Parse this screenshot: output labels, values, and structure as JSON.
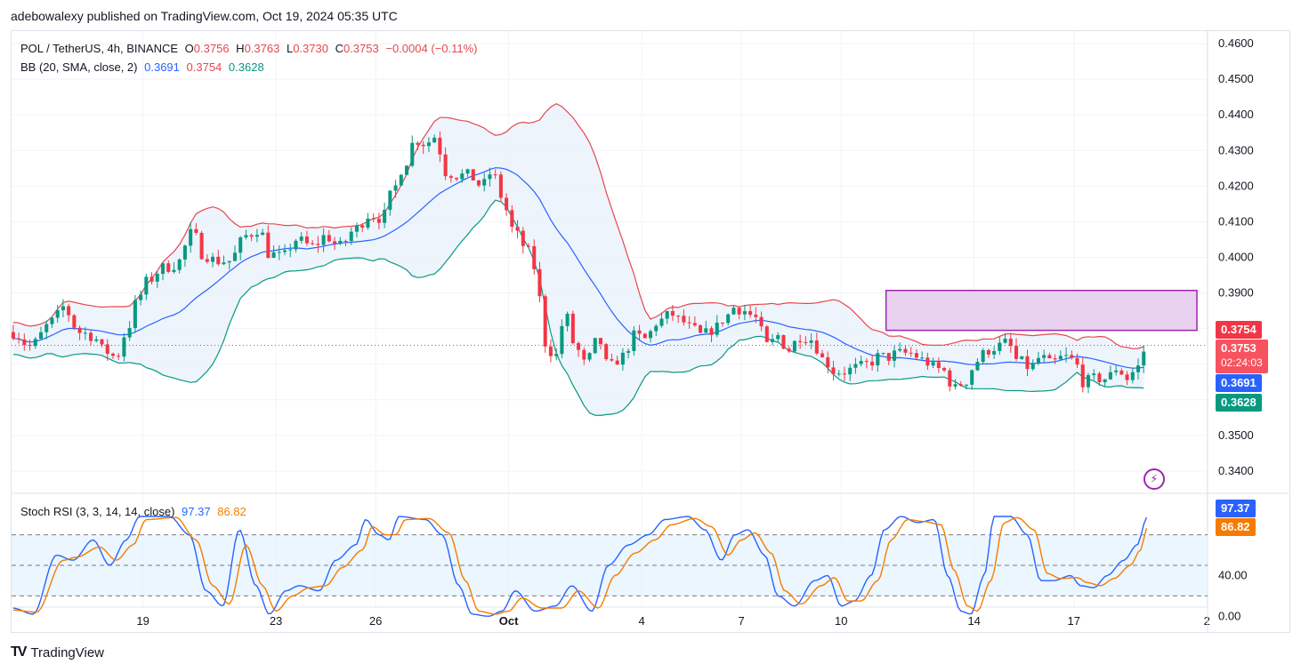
{
  "publisher_line": "adebowalexy published on TradingView.com, Oct 19, 2024 05:35 UTC",
  "legend": {
    "symbol": "POL / TetherUS, 4h, BINANCE",
    "o_label": "O",
    "o_value": "0.3756",
    "h_label": "H",
    "h_value": "0.3763",
    "l_label": "L",
    "l_value": "0.3730",
    "c_label": "C",
    "c_value": "0.3753",
    "change": "−0.0004 (−0.11%)",
    "bb_label": "BB (20, SMA, close, 2)",
    "bb_basis": "0.3691",
    "bb_upper": "0.3754",
    "bb_lower": "0.3628",
    "stoch_label": "Stoch RSI (3, 3, 14, 14, close)",
    "stoch_k": "97.37",
    "stoch_d": "86.82"
  },
  "price_tags": {
    "upper": "0.3754",
    "close": "0.3753",
    "countdown": "02:24:03",
    "basis": "0.3691",
    "lower": "0.3628",
    "stoch_k": "97.37",
    "stoch_d": "86.82"
  },
  "colors": {
    "up": "#089981",
    "down": "#f23645",
    "upper_band": "#e5484d",
    "basis": "#2962ff",
    "lower_band": "#089981",
    "band_fill": "#e8f1fb",
    "zone": "#e8d2ef",
    "zone_border": "#9c27b0",
    "stoch_k": "#2962ff",
    "stoch_d": "#f57c00",
    "stoch_fill": "#e3f2fd"
  },
  "footer": {
    "brand": "TradingView",
    "logo_text": "TV"
  },
  "icons": {
    "flash": "lightning-bolt-icon"
  },
  "chart_data": [
    {
      "type": "candlestick",
      "title": "POL / TetherUS, 4h, BINANCE",
      "ylim": [
        0.335,
        0.462
      ],
      "y_ticks": [
        "0.4600",
        "0.4500",
        "0.4400",
        "0.4300",
        "0.4200",
        "0.4100",
        "0.4000",
        "0.3900",
        "0.3800",
        "0.3700",
        "0.3600",
        "0.3500",
        "0.3400"
      ],
      "x_ticks": [
        {
          "label": "19",
          "day": 19
        },
        {
          "label": "23",
          "day": 23
        },
        {
          "label": "26",
          "day": 26
        },
        {
          "label": "Oct",
          "day": 30
        },
        {
          "label": "4",
          "day": 34
        },
        {
          "label": "7",
          "day": 37
        },
        {
          "label": "10",
          "day": 40
        },
        {
          "label": "14",
          "day": 44
        },
        {
          "label": "17",
          "day": 47
        },
        {
          "label": "2",
          "day": 51
        }
      ],
      "days_range": [
        15.05,
        51.02
      ],
      "close_key": [
        [
          15.1,
          0.379
        ],
        [
          15.6,
          0.375
        ],
        [
          16.3,
          0.382
        ],
        [
          16.6,
          0.386
        ],
        [
          17.1,
          0.379
        ],
        [
          17.5,
          0.378
        ],
        [
          17.8,
          0.374
        ],
        [
          18.2,
          0.372
        ],
        [
          18.5,
          0.379
        ],
        [
          18.8,
          0.387
        ],
        [
          19.1,
          0.393
        ],
        [
          19.6,
          0.397
        ],
        [
          20.0,
          0.398
        ],
        [
          20.5,
          0.407
        ],
        [
          20.8,
          0.401
        ],
        [
          21.2,
          0.399
        ],
        [
          21.6,
          0.399
        ],
        [
          22.1,
          0.406
        ],
        [
          22.5,
          0.408
        ],
        [
          22.8,
          0.401
        ],
        [
          23.2,
          0.4
        ],
        [
          23.6,
          0.405
        ],
        [
          24.1,
          0.403
        ],
        [
          24.5,
          0.406
        ],
        [
          24.9,
          0.403
        ],
        [
          25.4,
          0.408
        ],
        [
          25.8,
          0.412
        ],
        [
          26.2,
          0.411
        ],
        [
          26.5,
          0.418
        ],
        [
          26.8,
          0.425
        ],
        [
          27.2,
          0.433
        ],
        [
          27.5,
          0.432
        ],
        [
          27.8,
          0.434
        ],
        [
          28.1,
          0.424
        ],
        [
          28.5,
          0.423
        ],
        [
          28.8,
          0.423
        ],
        [
          29.2,
          0.42
        ],
        [
          29.5,
          0.424
        ],
        [
          29.8,
          0.417
        ],
        [
          30.1,
          0.408
        ],
        [
          30.5,
          0.403
        ],
        [
          30.8,
          0.397
        ],
        [
          31.1,
          0.376
        ],
        [
          31.4,
          0.372
        ],
        [
          31.7,
          0.384
        ],
        [
          32.0,
          0.375
        ],
        [
          32.3,
          0.37
        ],
        [
          32.7,
          0.377
        ],
        [
          33.0,
          0.369
        ],
        [
          33.4,
          0.372
        ],
        [
          33.8,
          0.378
        ],
        [
          34.1,
          0.377
        ],
        [
          34.5,
          0.382
        ],
        [
          34.9,
          0.384
        ],
        [
          35.2,
          0.382
        ],
        [
          35.5,
          0.38
        ],
        [
          35.8,
          0.378
        ],
        [
          36.2,
          0.38
        ],
        [
          36.5,
          0.383
        ],
        [
          36.8,
          0.386
        ],
        [
          37.1,
          0.385
        ],
        [
          37.4,
          0.383
        ],
        [
          37.8,
          0.375
        ],
        [
          38.1,
          0.378
        ],
        [
          38.4,
          0.374
        ],
        [
          38.8,
          0.378
        ],
        [
          39.1,
          0.377
        ],
        [
          39.5,
          0.371
        ],
        [
          39.8,
          0.368
        ],
        [
          40.1,
          0.368
        ],
        [
          40.5,
          0.369
        ],
        [
          40.8,
          0.37
        ],
        [
          41.1,
          0.372
        ],
        [
          41.4,
          0.372
        ],
        [
          41.7,
          0.373
        ],
        [
          42.1,
          0.373
        ],
        [
          42.5,
          0.371
        ],
        [
          42.8,
          0.369
        ],
        [
          43.1,
          0.368
        ],
        [
          43.4,
          0.363
        ],
        [
          43.7,
          0.365
        ],
        [
          44.1,
          0.371
        ],
        [
          44.4,
          0.374
        ],
        [
          44.7,
          0.375
        ],
        [
          45.0,
          0.376
        ],
        [
          45.3,
          0.371
        ],
        [
          45.7,
          0.369
        ],
        [
          46.0,
          0.372
        ],
        [
          46.3,
          0.37
        ],
        [
          46.7,
          0.372
        ],
        [
          47.0,
          0.371
        ],
        [
          47.3,
          0.365
        ],
        [
          47.7,
          0.366
        ],
        [
          48.0,
          0.366
        ],
        [
          48.3,
          0.369
        ],
        [
          48.6,
          0.366
        ],
        [
          48.9,
          0.369
        ],
        [
          49.2,
          0.3753
        ]
      ],
      "resistance_zone": {
        "day_from": 41.35,
        "day_to": 50.7,
        "price_low": 0.3795,
        "price_high": 0.3907
      }
    },
    {
      "type": "line",
      "title": "Stoch RSI (3, 3, 14, 14, close)",
      "ylim": [
        -5,
        112
      ],
      "y_ticks": [
        "40.00",
        "0.00"
      ],
      "bands": [
        80,
        50,
        20
      ],
      "series": [
        {
          "name": "K",
          "key": [
            [
              15.1,
              8
            ],
            [
              15.7,
              2
            ],
            [
              16.4,
              60
            ],
            [
              16.9,
              55
            ],
            [
              17.5,
              75
            ],
            [
              18.0,
              50
            ],
            [
              18.5,
              75
            ],
            [
              18.9,
              98
            ],
            [
              19.8,
              98
            ],
            [
              20.4,
              80
            ],
            [
              20.9,
              25
            ],
            [
              21.4,
              10
            ],
            [
              21.9,
              85
            ],
            [
              22.4,
              30
            ],
            [
              22.8,
              2
            ],
            [
              23.3,
              25
            ],
            [
              23.7,
              30
            ],
            [
              24.3,
              25
            ],
            [
              24.8,
              55
            ],
            [
              25.4,
              70
            ],
            [
              25.7,
              95
            ],
            [
              26.1,
              80
            ],
            [
              26.4,
              75
            ],
            [
              26.7,
              98
            ],
            [
              27.5,
              95
            ],
            [
              28.0,
              80
            ],
            [
              28.5,
              30
            ],
            [
              28.9,
              2
            ],
            [
              29.4,
              0
            ],
            [
              29.8,
              5
            ],
            [
              30.2,
              25
            ],
            [
              30.8,
              5
            ],
            [
              31.4,
              10
            ],
            [
              31.9,
              30
            ],
            [
              32.5,
              5
            ],
            [
              33.0,
              50
            ],
            [
              33.6,
              70
            ],
            [
              34.2,
              80
            ],
            [
              34.7,
              95
            ],
            [
              35.4,
              98
            ],
            [
              35.9,
              85
            ],
            [
              36.4,
              55
            ],
            [
              36.8,
              80
            ],
            [
              37.2,
              85
            ],
            [
              37.7,
              60
            ],
            [
              38.1,
              20
            ],
            [
              38.6,
              10
            ],
            [
              39.2,
              35
            ],
            [
              39.6,
              40
            ],
            [
              40.0,
              10
            ],
            [
              40.4,
              15
            ],
            [
              40.9,
              40
            ],
            [
              41.3,
              85
            ],
            [
              41.8,
              98
            ],
            [
              42.3,
              92
            ],
            [
              42.8,
              95
            ],
            [
              43.2,
              40
            ],
            [
              43.6,
              5
            ],
            [
              43.9,
              2
            ],
            [
              44.3,
              40
            ],
            [
              44.6,
              98
            ],
            [
              45.1,
              98
            ],
            [
              45.6,
              80
            ],
            [
              46.0,
              35
            ],
            [
              46.4,
              35
            ],
            [
              46.9,
              40
            ],
            [
              47.2,
              30
            ],
            [
              47.6,
              28
            ],
            [
              48.0,
              40
            ],
            [
              48.5,
              55
            ],
            [
              48.9,
              70
            ],
            [
              49.2,
              97.37
            ]
          ]
        },
        {
          "name": "D",
          "key": [
            [
              15.1,
              6
            ],
            [
              15.8,
              4
            ],
            [
              16.6,
              55
            ],
            [
              17.0,
              58
            ],
            [
              17.7,
              68
            ],
            [
              18.2,
              55
            ],
            [
              18.7,
              70
            ],
            [
              19.1,
              95
            ],
            [
              20.0,
              97
            ],
            [
              20.6,
              75
            ],
            [
              21.1,
              30
            ],
            [
              21.6,
              12
            ],
            [
              22.1,
              70
            ],
            [
              22.6,
              30
            ],
            [
              23.0,
              5
            ],
            [
              23.5,
              20
            ],
            [
              24.0,
              28
            ],
            [
              24.5,
              30
            ],
            [
              25.0,
              48
            ],
            [
              25.6,
              65
            ],
            [
              25.9,
              88
            ],
            [
              26.3,
              80
            ],
            [
              26.6,
              80
            ],
            [
              26.9,
              95
            ],
            [
              27.6,
              96
            ],
            [
              28.2,
              82
            ],
            [
              28.7,
              35
            ],
            [
              29.1,
              5
            ],
            [
              29.6,
              2
            ],
            [
              30.0,
              5
            ],
            [
              30.4,
              18
            ],
            [
              31.0,
              8
            ],
            [
              31.6,
              8
            ],
            [
              32.1,
              25
            ],
            [
              32.7,
              8
            ],
            [
              33.2,
              40
            ],
            [
              33.8,
              62
            ],
            [
              34.4,
              75
            ],
            [
              34.9,
              90
            ],
            [
              35.6,
              96
            ],
            [
              36.1,
              88
            ],
            [
              36.6,
              60
            ],
            [
              37.0,
              75
            ],
            [
              37.4,
              82
            ],
            [
              37.9,
              62
            ],
            [
              38.3,
              25
            ],
            [
              38.8,
              12
            ],
            [
              39.4,
              30
            ],
            [
              39.8,
              38
            ],
            [
              40.2,
              15
            ],
            [
              40.6,
              15
            ],
            [
              41.1,
              35
            ],
            [
              41.5,
              75
            ],
            [
              42.0,
              95
            ],
            [
              42.5,
              93
            ],
            [
              43.0,
              90
            ],
            [
              43.4,
              45
            ],
            [
              43.8,
              10
            ],
            [
              44.1,
              5
            ],
            [
              44.5,
              35
            ],
            [
              44.9,
              92
            ],
            [
              45.3,
              97
            ],
            [
              45.8,
              85
            ],
            [
              46.2,
              42
            ],
            [
              46.6,
              37
            ],
            [
              47.1,
              38
            ],
            [
              47.4,
              33
            ],
            [
              47.8,
              30
            ],
            [
              48.2,
              37
            ],
            [
              48.7,
              50
            ],
            [
              49.0,
              65
            ],
            [
              49.2,
              86.82
            ]
          ]
        }
      ]
    }
  ]
}
